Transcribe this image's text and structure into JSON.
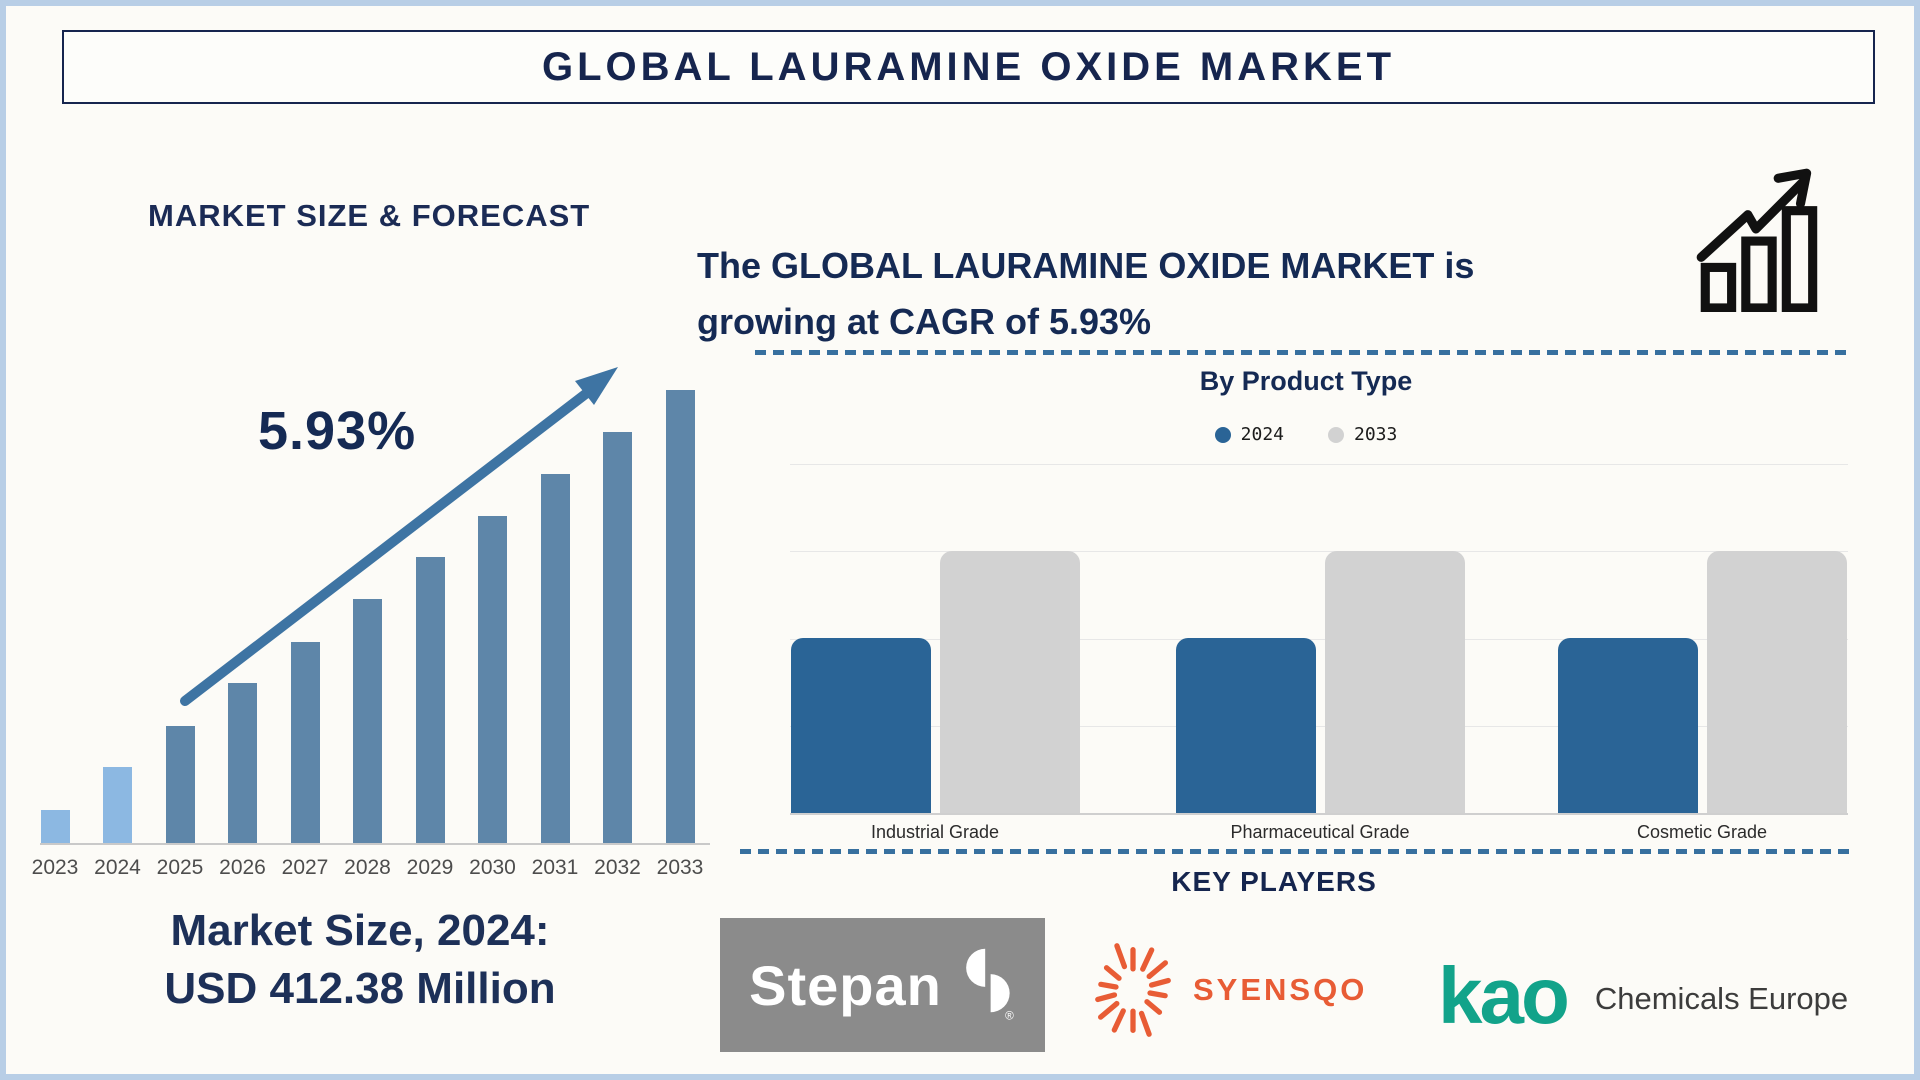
{
  "title": "GLOBAL LAURAMINE OXIDE MARKET",
  "left_panel": {
    "heading": "MARKET SIZE & FORECAST",
    "cagr_annotation": "5.93%",
    "market_size_caption_line1": "Market Size, 2024:",
    "market_size_caption_line2": "USD 412.38 Million"
  },
  "right_panel": {
    "headline_line1": "The GLOBAL LAURAMINE OXIDE MARKET is",
    "headline_line2": "growing at CAGR of 5.93%"
  },
  "key_players": {
    "heading": "KEY PLAYERS",
    "logos": [
      {
        "name": "Stepan",
        "text": "Stepan",
        "reg_mark": "®"
      },
      {
        "name": "Syensqo",
        "text": "SYENSQO"
      },
      {
        "name": "Kao Chemicals Europe",
        "text_primary": "kao",
        "text_secondary": "Chemicals Europe"
      }
    ]
  },
  "chart_data": [
    {
      "type": "bar",
      "title": "MARKET SIZE & FORECAST",
      "categories": [
        "2023",
        "2024",
        "2025",
        "2026",
        "2027",
        "2028",
        "2029",
        "2030",
        "2031",
        "2032",
        "2033"
      ],
      "values_relative_pct": [
        7.3,
        16.8,
        25.8,
        35.3,
        44.4,
        53.9,
        63.1,
        72.2,
        81.5,
        90.7,
        100
      ],
      "known_points": {
        "market_size_2024_usd_million": 412.38,
        "cagr_pct": 5.93
      },
      "annotation": "5.93% with upward trend arrow",
      "axis": "none (stylized infographic, no value axis)",
      "highlight_years_light": [
        "2023",
        "2024"
      ]
    },
    {
      "type": "bar",
      "title": "By Product Type",
      "categories": [
        "Industrial Grade",
        "Pharmaceutical Grade",
        "Cosmetic Grade"
      ],
      "series": [
        {
          "name": "2024",
          "color": "#2a6496",
          "values": [
            2,
            2,
            2
          ]
        },
        {
          "name": "2033",
          "color": "#d2d2d2",
          "values": [
            3,
            3,
            3
          ]
        }
      ],
      "ylim": [
        0,
        4
      ],
      "unit": "gridline intervals (value axis unlabeled)",
      "grid": true,
      "legend_position": "top"
    }
  ],
  "colors": {
    "navy_text": "#152a54",
    "forecast_bar_light": "#8cb8e2",
    "forecast_bar_dark": "#5e86a9",
    "trend_arrow": "#3e74a3",
    "product_bar_2024": "#2a6496",
    "product_bar_2033": "#d2d2d2",
    "dashed_separator": "#37709f",
    "frame_border": "#b8cee6",
    "stepan_gray": "#8b8b8b",
    "syensqo_orange": "#e85c35",
    "kao_teal": "#12a38a"
  }
}
